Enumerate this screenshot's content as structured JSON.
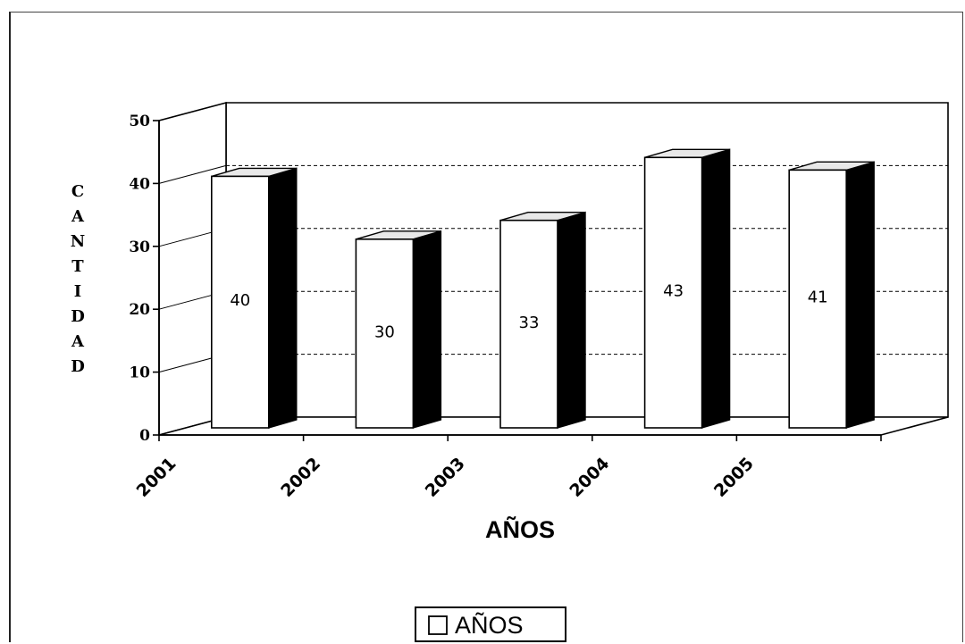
{
  "chart_data": {
    "type": "bar",
    "categories": [
      "2001",
      "2002",
      "2003",
      "2004",
      "2005"
    ],
    "series": [
      {
        "name": "AÑOS",
        "values": [
          40,
          30,
          33,
          43,
          41
        ]
      }
    ],
    "xlabel": "AÑOS",
    "ylabel": "CANTIDAD",
    "ylim": [
      0,
      50
    ],
    "yticks": [
      "0",
      "10",
      "20",
      "30",
      "40",
      "50"
    ],
    "data_labels": [
      "40",
      "30",
      "33",
      "43",
      "41"
    ],
    "grid": true,
    "legend": "bottom",
    "colors": {
      "bar_front": "#ffffff",
      "bar_side": "#000000",
      "bar_top": "#e8e8e8",
      "grid": "#000000"
    }
  }
}
